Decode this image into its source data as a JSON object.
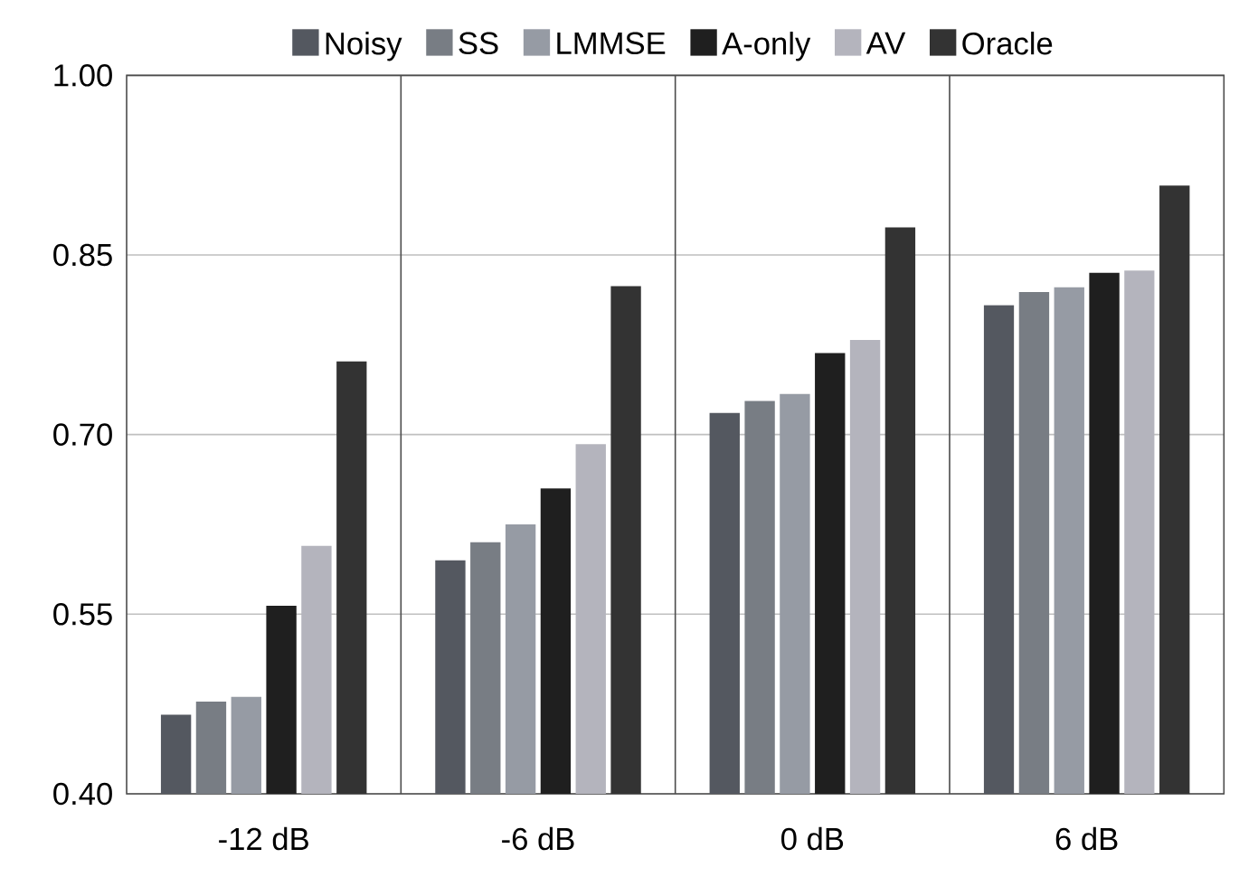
{
  "chart_data": {
    "type": "bar",
    "categories": [
      "-12 dB",
      "-6 dB",
      "0 dB",
      "6 dB"
    ],
    "series": [
      {
        "name": "Noisy",
        "color": "#545860",
        "values": [
          0.466,
          0.595,
          0.718,
          0.808
        ]
      },
      {
        "name": "SS",
        "color": "#787d84",
        "values": [
          0.477,
          0.61,
          0.728,
          0.819
        ]
      },
      {
        "name": "LMMSE",
        "color": "#969ba4",
        "values": [
          0.481,
          0.625,
          0.734,
          0.823
        ]
      },
      {
        "name": "A-only",
        "color": "#1f1f1f",
        "values": [
          0.557,
          0.655,
          0.768,
          0.835
        ]
      },
      {
        "name": "AV",
        "color": "#b4b4bd",
        "values": [
          0.607,
          0.692,
          0.779,
          0.837
        ]
      },
      {
        "name": "Oracle",
        "color": "#333333",
        "values": [
          0.761,
          0.824,
          0.873,
          0.908
        ]
      }
    ],
    "ylim": [
      0.4,
      1.0
    ],
    "yticks": [
      {
        "value": 0.4,
        "label": "0.40"
      },
      {
        "value": 0.55,
        "label": "0.55"
      },
      {
        "value": 0.7,
        "label": "0.70"
      },
      {
        "value": 0.85,
        "label": "0.85"
      },
      {
        "value": 1.0,
        "label": "1.00"
      }
    ],
    "grid": "y",
    "legend": "top"
  }
}
